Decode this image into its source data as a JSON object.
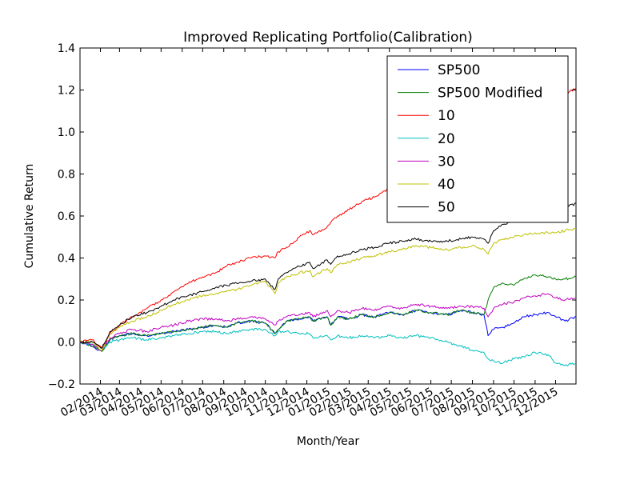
{
  "chart_data": {
    "type": "line",
    "title": "Improved Replicating Portfolio(Calibration)",
    "xlabel": "Month/Year",
    "ylabel": "Cumulative Return",
    "ylim": [
      -0.2,
      1.4
    ],
    "yticks": [
      -0.2,
      0.0,
      0.2,
      0.4,
      0.6,
      0.8,
      1.0,
      1.2,
      1.4
    ],
    "ytick_labels": [
      "−0.2",
      "0.0",
      "0.2",
      "0.4",
      "0.6",
      "0.8",
      "1.0",
      "1.2",
      "1.4"
    ],
    "xlim": [
      "2014-01-02",
      "2015-12-31"
    ],
    "xticks": [
      "2014-02-01",
      "2014-03-01",
      "2014-04-01",
      "2014-05-01",
      "2014-06-01",
      "2014-07-01",
      "2014-08-01",
      "2014-09-01",
      "2014-10-01",
      "2014-11-01",
      "2014-12-01",
      "2015-01-01",
      "2015-02-01",
      "2015-03-01",
      "2015-04-01",
      "2015-05-01",
      "2015-06-01",
      "2015-07-01",
      "2015-08-01",
      "2015-09-01",
      "2015-10-01",
      "2015-11-01",
      "2015-12-01"
    ],
    "xtick_labels": [
      "02/2014",
      "03/2014",
      "04/2014",
      "05/2014",
      "06/2014",
      "07/2014",
      "08/2014",
      "09/2014",
      "10/2014",
      "11/2014",
      "12/2014",
      "01/2015",
      "02/2015",
      "03/2015",
      "04/2015",
      "05/2015",
      "06/2015",
      "07/2015",
      "08/2015",
      "09/2015",
      "10/2015",
      "11/2015",
      "12/2015"
    ],
    "grid": false,
    "legend_position": "top-right",
    "x": [
      "2014-01-02",
      "2014-01-20",
      "2014-02-03",
      "2014-02-15",
      "2014-03-01",
      "2014-03-20",
      "2014-04-10",
      "2014-05-01",
      "2014-05-20",
      "2014-06-10",
      "2014-07-01",
      "2014-07-20",
      "2014-08-05",
      "2014-08-20",
      "2014-09-10",
      "2014-10-01",
      "2014-10-15",
      "2014-10-20",
      "2014-11-01",
      "2014-11-20",
      "2014-12-05",
      "2014-12-10",
      "2014-12-31",
      "2015-01-05",
      "2015-01-15",
      "2015-02-01",
      "2015-02-20",
      "2015-03-10",
      "2015-04-01",
      "2015-04-20",
      "2015-05-10",
      "2015-06-01",
      "2015-06-25",
      "2015-07-15",
      "2015-08-01",
      "2015-08-18",
      "2015-08-24",
      "2015-09-01",
      "2015-09-15",
      "2015-10-01",
      "2015-10-15",
      "2015-11-01",
      "2015-11-20",
      "2015-12-01",
      "2015-12-15",
      "2015-12-31"
    ],
    "series": [
      {
        "name": "SP500",
        "color": "#0000ff",
        "values": [
          0.0,
          -0.02,
          -0.045,
          0.01,
          0.03,
          0.04,
          0.03,
          0.04,
          0.05,
          0.06,
          0.07,
          0.08,
          0.07,
          0.09,
          0.1,
          0.09,
          0.04,
          0.06,
          0.1,
          0.11,
          0.12,
          0.1,
          0.12,
          0.08,
          0.12,
          0.11,
          0.13,
          0.12,
          0.14,
          0.13,
          0.15,
          0.14,
          0.13,
          0.15,
          0.14,
          0.13,
          0.03,
          0.06,
          0.07,
          0.09,
          0.12,
          0.13,
          0.14,
          0.12,
          0.1,
          0.12
        ]
      },
      {
        "name": "SP500 Modified",
        "color": "#008000",
        "values": [
          0.0,
          -0.02,
          -0.045,
          0.01,
          0.03,
          0.04,
          0.03,
          0.04,
          0.05,
          0.06,
          0.07,
          0.08,
          0.07,
          0.09,
          0.1,
          0.09,
          0.04,
          0.06,
          0.1,
          0.11,
          0.12,
          0.1,
          0.12,
          0.08,
          0.12,
          0.11,
          0.13,
          0.12,
          0.14,
          0.13,
          0.15,
          0.14,
          0.13,
          0.15,
          0.14,
          0.13,
          0.2,
          0.26,
          0.28,
          0.27,
          0.3,
          0.32,
          0.31,
          0.3,
          0.3,
          0.31
        ]
      },
      {
        "name": "10",
        "color": "#ff0000",
        "values": [
          0.0,
          0.01,
          -0.03,
          0.04,
          0.08,
          0.12,
          0.16,
          0.2,
          0.24,
          0.28,
          0.31,
          0.33,
          0.36,
          0.38,
          0.4,
          0.41,
          0.4,
          0.43,
          0.45,
          0.5,
          0.53,
          0.51,
          0.55,
          0.57,
          0.6,
          0.63,
          0.67,
          0.69,
          0.73,
          0.75,
          0.74,
          0.76,
          0.78,
          0.8,
          0.85,
          0.83,
          0.8,
          0.9,
          0.93,
          0.98,
          1.0,
          1.05,
          1.1,
          1.14,
          1.18,
          1.21
        ]
      },
      {
        "name": "20",
        "color": "#00bfbf",
        "values": [
          0.0,
          -0.01,
          -0.04,
          0.0,
          0.01,
          0.02,
          0.01,
          0.02,
          0.03,
          0.04,
          0.05,
          0.05,
          0.04,
          0.05,
          0.06,
          0.06,
          0.03,
          0.05,
          0.05,
          0.04,
          0.04,
          0.02,
          0.03,
          0.01,
          0.03,
          0.02,
          0.03,
          0.02,
          0.03,
          0.02,
          0.03,
          0.02,
          0.0,
          -0.02,
          -0.04,
          -0.05,
          -0.08,
          -0.09,
          -0.1,
          -0.08,
          -0.07,
          -0.05,
          -0.06,
          -0.1,
          -0.11,
          -0.1
        ]
      },
      {
        "name": "30",
        "color": "#bf00bf",
        "values": [
          0.0,
          -0.01,
          -0.04,
          0.02,
          0.04,
          0.06,
          0.05,
          0.07,
          0.08,
          0.1,
          0.11,
          0.11,
          0.1,
          0.11,
          0.12,
          0.11,
          0.08,
          0.1,
          0.12,
          0.13,
          0.14,
          0.12,
          0.15,
          0.12,
          0.15,
          0.14,
          0.16,
          0.15,
          0.17,
          0.16,
          0.18,
          0.17,
          0.16,
          0.17,
          0.17,
          0.16,
          0.12,
          0.16,
          0.18,
          0.19,
          0.21,
          0.22,
          0.23,
          0.21,
          0.2,
          0.21
        ]
      },
      {
        "name": "40",
        "color": "#bfbf00",
        "values": [
          0.0,
          0.0,
          -0.04,
          0.04,
          0.07,
          0.1,
          0.12,
          0.15,
          0.18,
          0.2,
          0.22,
          0.23,
          0.24,
          0.25,
          0.27,
          0.29,
          0.23,
          0.28,
          0.31,
          0.33,
          0.34,
          0.31,
          0.35,
          0.33,
          0.37,
          0.38,
          0.4,
          0.41,
          0.43,
          0.44,
          0.46,
          0.45,
          0.44,
          0.45,
          0.46,
          0.44,
          0.42,
          0.47,
          0.49,
          0.5,
          0.51,
          0.52,
          0.52,
          0.52,
          0.53,
          0.54
        ]
      },
      {
        "name": "50",
        "color": "#000000",
        "values": [
          0.0,
          0.0,
          -0.03,
          0.05,
          0.08,
          0.12,
          0.14,
          0.17,
          0.2,
          0.22,
          0.24,
          0.26,
          0.27,
          0.28,
          0.29,
          0.3,
          0.25,
          0.3,
          0.33,
          0.36,
          0.38,
          0.35,
          0.39,
          0.37,
          0.41,
          0.42,
          0.44,
          0.45,
          0.47,
          0.48,
          0.49,
          0.48,
          0.48,
          0.49,
          0.5,
          0.49,
          0.47,
          0.53,
          0.56,
          0.58,
          0.6,
          0.61,
          0.62,
          0.63,
          0.64,
          0.66
        ]
      }
    ]
  }
}
